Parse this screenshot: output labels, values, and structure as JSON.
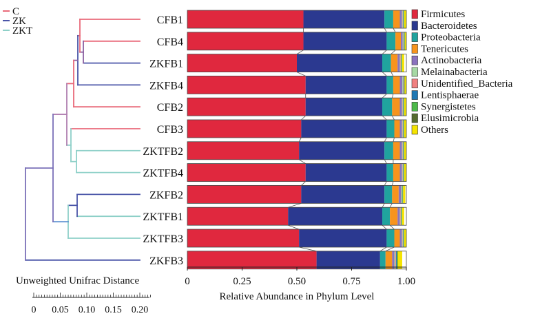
{
  "chart_data": {
    "type": "bar",
    "orientation": "horizontal",
    "stacked": true,
    "xlabel": "Relative Abundance in Phylum Level",
    "xlim": [
      0,
      1
    ],
    "xticks": [
      0,
      0.25,
      0.5,
      0.75,
      1
    ],
    "xtick_labels": [
      "0",
      "0.25",
      "0.50",
      "0.75",
      "1.00"
    ],
    "grid": false,
    "legend_position": "right",
    "categories": [
      "CFB1",
      "CFB4",
      "ZKFB1",
      "ZKFB4",
      "CFB2",
      "CFB3",
      "ZKTFB2",
      "ZKTFB4",
      "ZKFB2",
      "ZKTFB1",
      "ZKTFB3",
      "ZKFB3"
    ],
    "series": [
      {
        "name": "Firmicutes",
        "color": "#e0283e",
        "values": [
          0.53,
          0.53,
          0.5,
          0.54,
          0.54,
          0.52,
          0.51,
          0.54,
          0.52,
          0.46,
          0.51,
          0.59
        ]
      },
      {
        "name": "Bacteroidetes",
        "color": "#2b3990",
        "values": [
          0.37,
          0.38,
          0.39,
          0.37,
          0.35,
          0.39,
          0.39,
          0.37,
          0.38,
          0.43,
          0.4,
          0.29
        ]
      },
      {
        "name": "Proteobacteria",
        "color": "#20a39e",
        "values": [
          0.04,
          0.04,
          0.04,
          0.03,
          0.045,
          0.035,
          0.04,
          0.03,
          0.035,
          0.035,
          0.035,
          0.025
        ]
      },
      {
        "name": "Tenericutes",
        "color": "#f7941d",
        "values": [
          0.03,
          0.025,
          0.03,
          0.03,
          0.035,
          0.025,
          0.03,
          0.03,
          0.03,
          0.035,
          0.025,
          0.03
        ]
      },
      {
        "name": "Actinobacteria",
        "color": "#8b72be",
        "values": [
          0.01,
          0.008,
          0.01,
          0.012,
          0.01,
          0.01,
          0.01,
          0.01,
          0.01,
          0.01,
          0.01,
          0.01
        ]
      },
      {
        "name": "Melainabacteria",
        "color": "#a6d9a4",
        "values": [
          0.003,
          0.003,
          0.003,
          0.003,
          0.003,
          0.003,
          0.003,
          0.003,
          0.003,
          0.003,
          0.003,
          0.005
        ]
      },
      {
        "name": "Unidentified_Bacteria",
        "color": "#f08080",
        "values": [
          0.002,
          0.002,
          0.002,
          0.002,
          0.002,
          0.002,
          0.002,
          0.002,
          0.002,
          0.002,
          0.002,
          0.003
        ]
      },
      {
        "name": "Lentisphaerae",
        "color": "#1f78b4",
        "values": [
          0.002,
          0.002,
          0.002,
          0.002,
          0.002,
          0.002,
          0.002,
          0.002,
          0.002,
          0.002,
          0.002,
          0.003
        ]
      },
      {
        "name": "Synergistetes",
        "color": "#4dba4a",
        "values": [
          0.002,
          0.002,
          0.002,
          0.002,
          0.002,
          0.002,
          0.002,
          0.002,
          0.002,
          0.002,
          0.002,
          0.003
        ]
      },
      {
        "name": "Elusimicrobia",
        "color": "#556b2f",
        "values": [
          0.001,
          0.001,
          0.001,
          0.001,
          0.001,
          0.001,
          0.001,
          0.001,
          0.001,
          0.001,
          0.001,
          0.002
        ]
      },
      {
        "name": "Others",
        "color": "#f5e400",
        "values": [
          0.01,
          0.01,
          0.01,
          0.01,
          0.01,
          0.01,
          0.01,
          0.01,
          0.01,
          0.01,
          0.01,
          0.02
        ]
      }
    ],
    "dendrogram": {
      "groups": [
        {
          "name": "C",
          "color": "#e96a7a"
        },
        {
          "name": "ZK",
          "color": "#4a55a8"
        },
        {
          "name": "ZKT",
          "color": "#8ed0c8"
        }
      ],
      "scale_label": "Unweighted Unifrac Distance",
      "scale_ticks": [
        0,
        0.05,
        0.1,
        0.15,
        0.2
      ],
      "scale_tick_labels": [
        "0",
        "0.05",
        "0.10",
        "0.15",
        "0.20"
      ]
    }
  }
}
